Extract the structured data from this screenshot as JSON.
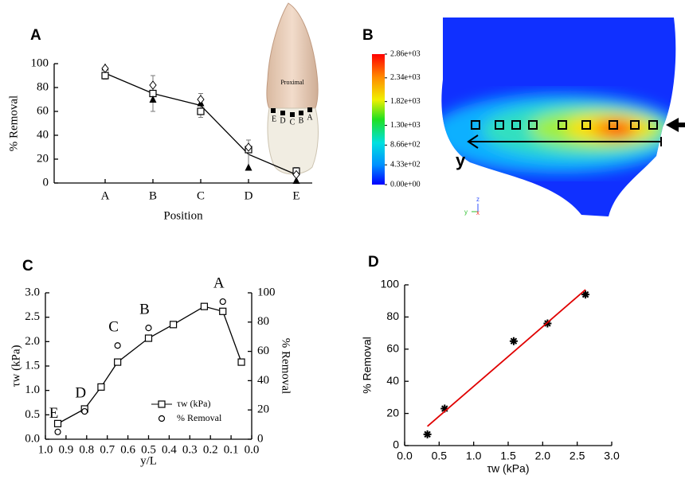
{
  "chart_data": [
    {
      "type": "line",
      "label": "A",
      "xlabel": "Position",
      "ylabel": "% Removal",
      "categories": [
        "A",
        "B",
        "C",
        "D",
        "E"
      ],
      "ylim": [
        0,
        100
      ],
      "yticks": [
        0,
        20,
        40,
        60,
        80,
        100
      ],
      "series": [
        {
          "style": "line",
          "color": "#000000",
          "values": [
            92,
            75,
            65,
            24,
            7
          ],
          "errors": [
            5,
            15,
            10,
            12,
            6
          ]
        },
        {
          "style": "markers",
          "marker": "square",
          "color": "#000000",
          "values": [
            90,
            75,
            60,
            28,
            10
          ]
        },
        {
          "style": "markers",
          "marker": "triangle",
          "color": "#000000",
          "values": [
            97,
            70,
            67,
            13,
            2
          ]
        },
        {
          "style": "markers",
          "marker": "diamond",
          "color": "#000000",
          "values": [
            96,
            82,
            70,
            30,
            7
          ]
        }
      ],
      "annotations": {
        "image": "Proximal",
        "positions": [
          "E",
          "D",
          "C",
          "B",
          "A"
        ]
      }
    },
    {
      "type": "contour",
      "label": "B",
      "axis_label": "y",
      "triad": [
        "z",
        "y",
        "x"
      ],
      "colorbar": {
        "lim": [
          0,
          2860
        ],
        "ticks": [
          {
            "value": 2860,
            "label": "2.86e+03"
          },
          {
            "value": 2340,
            "label": "2.34e+03"
          },
          {
            "value": 1820,
            "label": "1.82e+03"
          },
          {
            "value": 1300,
            "label": "1.30e+03"
          },
          {
            "value": 866,
            "label": "8.66e+02"
          },
          {
            "value": 433,
            "label": "4.33e+02"
          },
          {
            "value": 0,
            "label": "0.00e+00"
          }
        ]
      }
    },
    {
      "type": "line",
      "label": "C",
      "xlabel": "y/L",
      "ylabel": "τw (kPa)",
      "y2label": "% Removal",
      "xlim": [
        1,
        0
      ],
      "xticks": [
        {
          "value": 1,
          "label": "1.0"
        },
        0.9,
        0.8,
        0.7,
        0.6,
        0.5,
        0.4,
        0.3,
        0.2,
        0.1,
        {
          "value": 0,
          "label": "0.0"
        }
      ],
      "ylim": [
        0,
        3
      ],
      "yticks": [
        {
          "value": 0,
          "label": "0.0"
        },
        0.5,
        {
          "value": 1,
          "label": "1.0"
        },
        1.5,
        {
          "value": 2,
          "label": "2.0"
        },
        2.5,
        {
          "value": 3,
          "label": "3.0"
        }
      ],
      "y2lim": [
        0,
        100
      ],
      "y2ticks": [
        0,
        20,
        40,
        60,
        80,
        100
      ],
      "legend": "lower right",
      "series": [
        {
          "name": "τw (kPa)",
          "style": "line+markers",
          "marker": "square",
          "color": "#000000",
          "x": [
            0.94,
            0.81,
            0.73,
            0.65,
            0.5,
            0.38,
            0.23,
            0.14,
            0.05
          ],
          "values": [
            0.32,
            0.62,
            1.07,
            1.58,
            2.07,
            2.35,
            2.72,
            2.62,
            1.58
          ]
        },
        {
          "name": "% Removal",
          "style": "markers",
          "marker": "circle",
          "color": "#000000",
          "axis": "y2",
          "x": [
            0.94,
            0.81,
            0.65,
            0.5,
            0.14
          ],
          "values": [
            5,
            19,
            64,
            76,
            94
          ],
          "labels": [
            "E",
            "D",
            "C",
            "B",
            "A"
          ]
        }
      ]
    },
    {
      "type": "scatter",
      "label": "D",
      "xlabel": "τw (kPa)",
      "ylabel": "% Removal",
      "xlim": [
        0,
        3
      ],
      "xticks": [
        {
          "value": 0,
          "label": "0.0"
        },
        0.5,
        {
          "value": 1,
          "label": "1.0"
        },
        1.5,
        {
          "value": 2,
          "label": "2.0"
        },
        2.5,
        {
          "value": 3,
          "label": "3.0"
        }
      ],
      "ylim": [
        0,
        100
      ],
      "yticks": [
        0,
        20,
        40,
        60,
        80,
        100
      ],
      "series": [
        {
          "style": "markers",
          "marker": "asterisk",
          "color": "#000000",
          "x": [
            0.33,
            0.58,
            1.58,
            2.07,
            2.62
          ],
          "values": [
            7,
            23,
            65,
            76,
            94
          ]
        },
        {
          "style": "line",
          "color": "#e00000",
          "x": [
            0.33,
            2.62
          ],
          "values": [
            12,
            97
          ]
        }
      ]
    }
  ]
}
